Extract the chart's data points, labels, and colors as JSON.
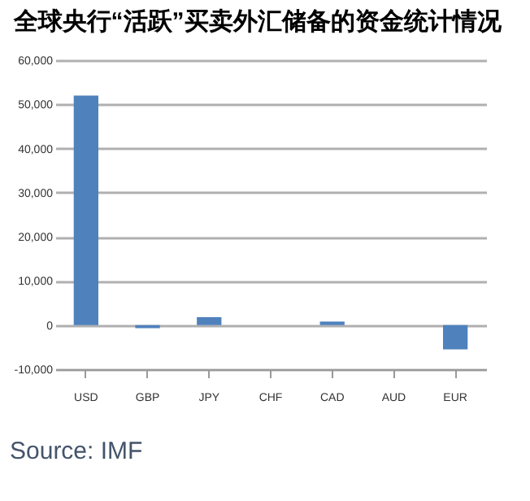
{
  "chart_data": {
    "type": "bar",
    "title": "全球央行“活跃”买卖外汇储备的资金统计情况",
    "categories": [
      "USD",
      "GBP",
      "JPY",
      "CHF",
      "CAD",
      "AUD",
      "EUR"
    ],
    "values": [
      52000,
      -700,
      1800,
      0,
      800,
      null,
      -5500
    ],
    "color": "#4f81bd",
    "ylim": [
      -10000,
      60000
    ],
    "yticks": [
      {
        "value": -10000,
        "label": "-10,000"
      },
      {
        "value": 0,
        "label": "0"
      },
      {
        "value": 10000,
        "label": "10,000"
      },
      {
        "value": 20000,
        "label": "20,000"
      },
      {
        "value": 30000,
        "label": "30,000"
      },
      {
        "value": 40000,
        "label": "40,000"
      },
      {
        "value": 50000,
        "label": "50,000"
      },
      {
        "value": 60000,
        "label": "60,000"
      }
    ],
    "grid": "y",
    "annotations": [
      "Source: IMF"
    ]
  }
}
